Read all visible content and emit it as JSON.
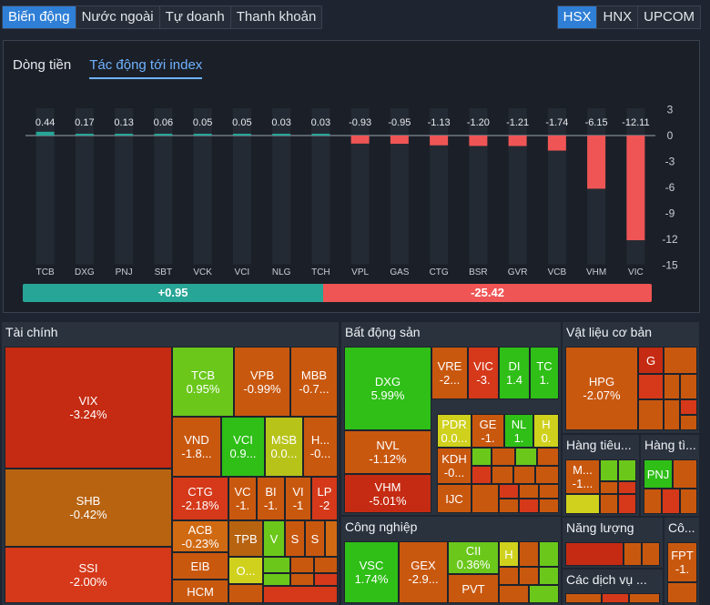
{
  "tabs": [
    "Biến động",
    "Nước ngoài",
    "Tự doanh",
    "Thanh khoản"
  ],
  "exchanges": [
    "HSX",
    "HNX",
    "UPCOM"
  ],
  "subtabs": [
    "Dòng tiền",
    "Tác động tới index"
  ],
  "summary": {
    "positive": "+0.95",
    "negative": "-25.42"
  },
  "colors": {
    "positive": "#27a596",
    "negative": "#ef5555",
    "active_tab": "#2f7fd6"
  },
  "chart_data": {
    "type": "bar",
    "categories": [
      "TCB",
      "DXG",
      "PNJ",
      "SBT",
      "VCK",
      "VCI",
      "NLG",
      "TCH",
      "VPL",
      "GAS",
      "CTG",
      "BSR",
      "GVR",
      "VCB",
      "VHM",
      "VIC"
    ],
    "values": [
      0.44,
      0.17,
      0.13,
      0.06,
      0.05,
      0.05,
      0.03,
      0.03,
      -0.93,
      -0.95,
      -1.13,
      -1.2,
      -1.21,
      -1.74,
      -6.15,
      -12.11
    ],
    "value_labels": [
      "0.44",
      "0.17",
      "0.13",
      "0.06",
      "0.05",
      "0.05",
      "0.03",
      "0.03",
      "-0.93",
      "-0.95",
      "-1.13",
      "-1.20",
      "-1.21",
      "-1.74",
      "-6.15",
      "-12.11"
    ],
    "yticks": [
      "3",
      "0",
      "-3",
      "-6",
      "-9",
      "-12",
      "-15"
    ],
    "ylim": [
      -15,
      3
    ],
    "grid": false
  },
  "treemap": {
    "sections": [
      {
        "key": "fin",
        "title": "Tài chính"
      },
      {
        "key": "bds",
        "title": "Bất động sản"
      },
      {
        "key": "vl",
        "title": "Vật liệu cơ bản"
      },
      {
        "key": "htd",
        "title": "Hàng tiêu..."
      },
      {
        "key": "hti",
        "title": "Hàng tì..."
      },
      {
        "key": "cn",
        "title": "Công nghiệp"
      },
      {
        "key": "nl",
        "title": "Năng lượng"
      },
      {
        "key": "cdv",
        "title": "Các dịch vụ ..."
      },
      {
        "key": "co",
        "title": "Cô..."
      }
    ],
    "cells": [
      {
        "sym": "VIX",
        "pct": "-3.24%"
      },
      {
        "sym": "SHB",
        "pct": "-0.42%"
      },
      {
        "sym": "SSI",
        "pct": "-2.00%"
      },
      {
        "sym": "TCB",
        "pct": "0.95%"
      },
      {
        "sym": "VPB",
        "pct": "-0.99%"
      },
      {
        "sym": "MBB",
        "pct": "-0.7..."
      },
      {
        "sym": "VND",
        "pct": "-1.8..."
      },
      {
        "sym": "VCI",
        "pct": "0.9..."
      },
      {
        "sym": "MSB",
        "pct": "0.0..."
      },
      {
        "sym": "H...",
        "pct": "-0..."
      },
      {
        "sym": "CTG",
        "pct": "-2.18%"
      },
      {
        "sym": "VC",
        "pct": "-1."
      },
      {
        "sym": "BI",
        "pct": "-1."
      },
      {
        "sym": "VI",
        "pct": "-1"
      },
      {
        "sym": "LP",
        "pct": "-2"
      },
      {
        "sym": "ACB",
        "pct": "-0.23%"
      },
      {
        "sym": "TPB",
        "pct": ""
      },
      {
        "sym": "V",
        "pct": ""
      },
      {
        "sym": "S",
        "pct": ""
      },
      {
        "sym": "S",
        "pct": ""
      },
      {
        "sym": "EIB",
        "pct": ""
      },
      {
        "sym": "O...",
        "pct": ""
      },
      {
        "sym": "HCM",
        "pct": ""
      },
      {
        "sym": "DXG",
        "pct": "5.99%"
      },
      {
        "sym": "VRE",
        "pct": "-2..."
      },
      {
        "sym": "VIC",
        "pct": "-3."
      },
      {
        "sym": "DI",
        "pct": "1.4"
      },
      {
        "sym": "TC",
        "pct": "1."
      },
      {
        "sym": "PDR",
        "pct": "0.0..."
      },
      {
        "sym": "GE",
        "pct": "-1."
      },
      {
        "sym": "NL",
        "pct": "1."
      },
      {
        "sym": "H",
        "pct": "0."
      },
      {
        "sym": "NVL",
        "pct": "-1.12%"
      },
      {
        "sym": "KDH",
        "pct": "-0..."
      },
      {
        "sym": "VHM",
        "pct": "-5.01%"
      },
      {
        "sym": "IJC",
        "pct": ""
      },
      {
        "sym": "HPG",
        "pct": "-2.07%"
      },
      {
        "sym": "G",
        "pct": ""
      },
      {
        "sym": "M...",
        "pct": "-1..."
      },
      {
        "sym": "PNJ",
        "pct": ""
      },
      {
        "sym": "VSC",
        "pct": "1.74%"
      },
      {
        "sym": "GEX",
        "pct": "-2.9..."
      },
      {
        "sym": "CII",
        "pct": "0.36%"
      },
      {
        "sym": "H",
        "pct": ""
      },
      {
        "sym": "PVT",
        "pct": ""
      },
      {
        "sym": "FPT",
        "pct": "-1."
      }
    ]
  }
}
